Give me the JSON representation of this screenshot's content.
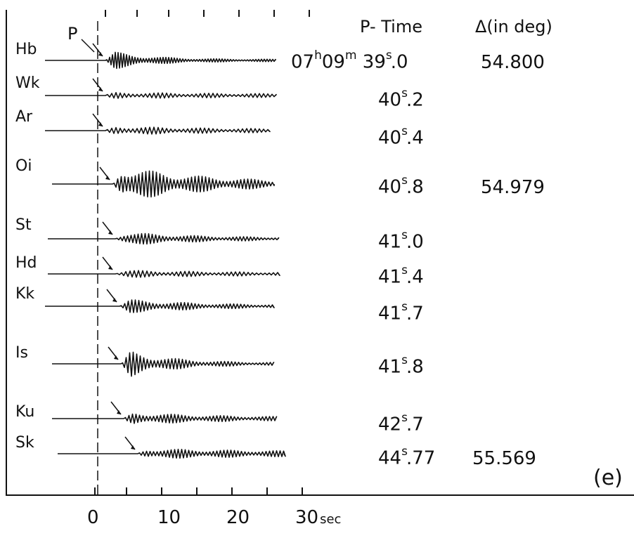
{
  "headers": {
    "ptime": "P- Time",
    "delta": "Δ(in deg)"
  },
  "p_marker": "P",
  "panel_tag": "(e)",
  "time_axis": {
    "ticks": [
      "0",
      "10",
      "20"
    ],
    "last_tick": "30",
    "unit": "sec"
  },
  "stations": [
    {
      "code": "Hb",
      "ptime_prefix": "07",
      "ptime_h": "h",
      "ptime_min": "09",
      "ptime_m": "m",
      "ptime_sec": "39",
      "ptime_frac": "0",
      "delta": "54.800"
    },
    {
      "code": "Wk",
      "ptime_sec": "40",
      "ptime_frac": "2",
      "delta": ""
    },
    {
      "code": "Ar",
      "ptime_sec": "40",
      "ptime_frac": "4",
      "delta": ""
    },
    {
      "code": "Oi",
      "ptime_sec": "40",
      "ptime_frac": "8",
      "delta": "54.979"
    },
    {
      "code": "St",
      "ptime_sec": "41",
      "ptime_frac": "0",
      "delta": ""
    },
    {
      "code": "Hd",
      "ptime_sec": "41",
      "ptime_frac": "4",
      "delta": ""
    },
    {
      "code": "Kk",
      "ptime_sec": "41",
      "ptime_frac": "7",
      "delta": ""
    },
    {
      "code": "Is",
      "ptime_sec": "41",
      "ptime_frac": "8",
      "delta": ""
    },
    {
      "code": "Ku",
      "ptime_sec": "42",
      "ptime_frac": "7",
      "delta": ""
    },
    {
      "code": "Sk",
      "ptime_sec": "44",
      "ptime_frac": "77",
      "delta": "55.569"
    }
  ],
  "sec_superscript": "s"
}
